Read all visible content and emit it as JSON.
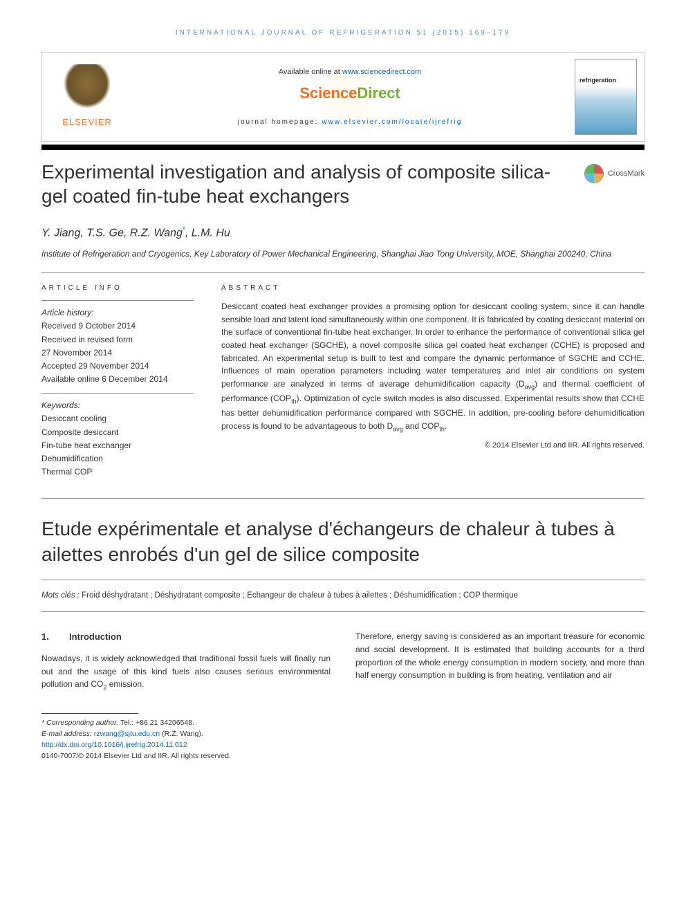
{
  "running_head": "INTERNATIONAL JOURNAL OF REFRIGERATION 51 (2015) 169–179",
  "banner": {
    "elsevier": "ELSEVIER",
    "available_prefix": "Available online at ",
    "available_link": "www.sciencedirect.com",
    "sd_part1": "Science",
    "sd_part2": "Direct",
    "homepage_prefix": "journal homepage: ",
    "homepage_link": "www.elsevier.com/locate/ijrefrig",
    "cover_title": "refrigeration"
  },
  "crossmark_label": "CrossMark",
  "title": "Experimental investigation and analysis of composite silica-gel coated fin-tube heat exchangers",
  "authors_html": "Y. Jiang, T.S. Ge, R.Z. Wang",
  "author_last": ", L.M. Hu",
  "corr_mark": "*",
  "affiliation": "Institute of Refrigeration and Cryogenics, Key Laboratory of Power Mechanical Engineering, Shanghai Jiao Tong University, MOE, Shanghai 200240, China",
  "labels": {
    "article_info": "ARTICLE INFO",
    "abstract": "ABSTRACT"
  },
  "history": {
    "label": "Article history:",
    "received": "Received 9 October 2014",
    "revised1": "Received in revised form",
    "revised2": "27 November 2014",
    "accepted": "Accepted 29 November 2014",
    "online": "Available online 6 December 2014"
  },
  "keywords": {
    "label": "Keywords:",
    "items": [
      "Desiccant cooling",
      "Composite desiccant",
      "Fin-tube heat exchanger",
      "Dehumidification",
      "Thermal COP"
    ]
  },
  "abstract": {
    "p1": "Desiccant coated heat exchanger provides a promising option for desiccant cooling system, since it can handle sensible load and latent load simultaneously within one component. It is fabricated by coating desiccant material on the surface of conventional fin-tube heat exchanger. In order to enhance the performance of conventional silica gel coated heat exchanger (SGCHE), a novel composite silica gel coated heat exchanger (CCHE) is proposed and fabricated. An experimental setup is built to test and compare the dynamic performance of SGCHE and CCHE. Influences of main operation parameters including water temperatures and inlet air conditions on system performance are analyzed in terms of average dehumidification capacity (D",
    "p1_sub1": "avg",
    "p1_mid": ") and thermal coefficient of performance (COP",
    "p1_sub2": "th",
    "p1_tail": "). Optimization of cycle switch modes is also discussed. Experimental results show that CCHE has better dehumidification performance compared with SGCHE. In addition, pre-cooling before dehumidification process is found to be advantageous to both D",
    "p1_sub3": "avg",
    "p1_tail2": " and COP",
    "p1_sub4": "th",
    "p1_end": "."
  },
  "copyright": "© 2014 Elsevier Ltd and IIR. All rights reserved.",
  "french_title": "Etude expérimentale et analyse d'échangeurs de chaleur à tubes à ailettes enrobés d'un gel de silice composite",
  "mots_cles": {
    "label": "Mots clés : ",
    "text": "Froid déshydratant ; Déshydratant composite ; Echangeur de chaleur à tubes à ailettes ; Déshumidification ; COP thermique"
  },
  "section1": {
    "num": "1.",
    "title": "Introduction",
    "col1": "Nowadays, it is widely acknowledged that traditional fossil fuels will finally run out and the usage of this kind fuels also causes serious environmental pollution and CO",
    "col1_sub": "2",
    "col1_tail": " emission.",
    "col2": "Therefore, energy saving is considered as an important treasure for economic and social development. It is estimated that building accounts for a third proportion of the whole energy consumption in modern society, and more than half energy consumption in building is from heating, ventilation and air"
  },
  "footnotes": {
    "corr_label": "* Corresponding author.",
    "tel": " Tel.: +86 21 34206548.",
    "email_label": "E-mail address: ",
    "email_link": "rzwang@sjtu.edu.cn",
    "email_tail": " (R.Z. Wang).",
    "doi": "http://dx.doi.org/10.1016/j.ijrefrig.2014.11.012",
    "issn": "0140-7007/© 2014 Elsevier Ltd and IIR. All rights reserved."
  },
  "colors": {
    "link": "#0066cc",
    "orange": "#ed6f1e",
    "green": "#7aab3c",
    "head_blue": "#5a8fb8",
    "text": "#333333",
    "rule": "#888888"
  }
}
